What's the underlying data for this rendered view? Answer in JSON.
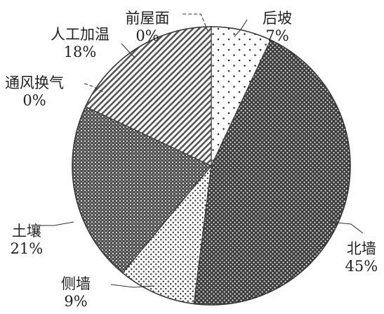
{
  "chart_data": {
    "type": "pie",
    "title": "",
    "slices": [
      {
        "label": "后坡",
        "value": 7,
        "value_label": "7%",
        "pattern": "sparse-dots"
      },
      {
        "label": "北墙",
        "value": 45,
        "value_label": "45%",
        "pattern": "dense-dark-dots"
      },
      {
        "label": "侧墙",
        "value": 9,
        "value_label": "9%",
        "pattern": "fine-dots"
      },
      {
        "label": "土壤",
        "value": 21,
        "value_label": "21%",
        "pattern": "dark-checker"
      },
      {
        "label": "通风换气",
        "value": 0,
        "value_label": "0%",
        "pattern": "none"
      },
      {
        "label": "人工加温",
        "value": 18,
        "value_label": "18%",
        "pattern": "diagonal-hatch"
      },
      {
        "label": "前屋面",
        "value": 0,
        "value_label": "0%",
        "pattern": "none"
      }
    ],
    "start_angle": "top (12 o'clock)",
    "direction": "clockwise",
    "style": "monochrome patterned fills with leader lines",
    "colors": {
      "ink": "#3a3a3a",
      "background": "#ffffff"
    }
  }
}
